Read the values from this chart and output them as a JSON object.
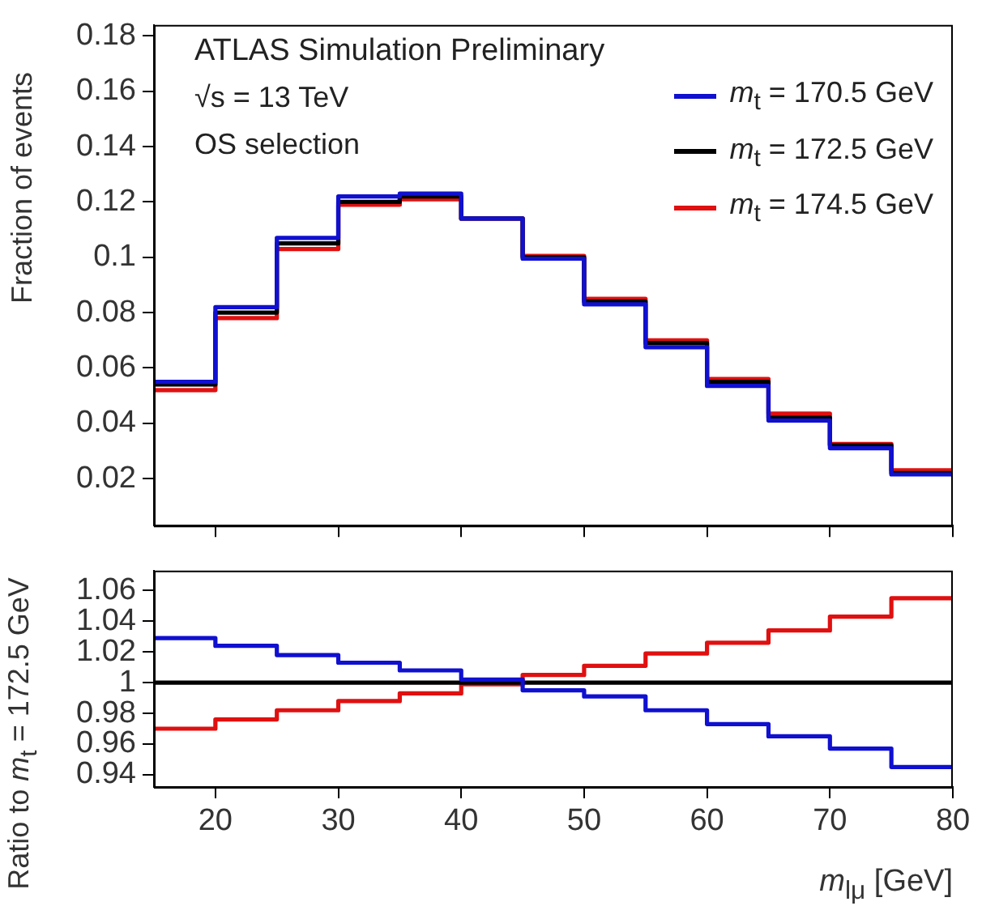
{
  "chart_data": [
    {
      "type": "histogram",
      "bins": [
        15,
        20,
        25,
        30,
        35,
        40,
        45,
        50,
        55,
        60,
        65,
        70,
        75,
        80
      ],
      "series": [
        {
          "name": "m$_{t}$ = 170.5 GeV",
          "color": "#1010d0",
          "values": [
            0.055,
            0.082,
            0.107,
            0.122,
            0.123,
            0.114,
            0.0995,
            0.083,
            0.0675,
            0.0535,
            0.041,
            0.031,
            0.0215
          ]
        },
        {
          "name": "m$_{t}$ = 172.5 GeV",
          "color": "#000000",
          "values": [
            0.054,
            0.08,
            0.105,
            0.12,
            0.122,
            0.114,
            0.1,
            0.084,
            0.069,
            0.055,
            0.042,
            0.032,
            0.022
          ]
        },
        {
          "name": "m$_{t}$ = 174.5 GeV",
          "color": "#e01010",
          "values": [
            0.052,
            0.078,
            0.103,
            0.119,
            0.121,
            0.114,
            0.1005,
            0.085,
            0.07,
            0.056,
            0.0435,
            0.0325,
            0.023
          ]
        }
      ],
      "ylabel": "Fraction of events",
      "xlim": [
        15,
        80
      ],
      "xticks": [
        20,
        30,
        40,
        50,
        60,
        70,
        80
      ],
      "ylim": [
        0.003,
        0.184
      ],
      "yticks": [
        0.02,
        0.04,
        0.06,
        0.08,
        0.1,
        0.12,
        0.14,
        0.16,
        0.18
      ],
      "tick_labels": "y",
      "legend": "top right",
      "grid": false,
      "annotations": [
        "ATLAS Simulation Preliminary",
        "√s = 13 TeV",
        "OS selection"
      ]
    },
    {
      "type": "histogram",
      "bins": [
        15,
        20,
        25,
        30,
        35,
        40,
        45,
        50,
        55,
        60,
        65,
        70,
        75,
        80
      ],
      "series": [
        {
          "color": "#1010d0",
          "values": [
            1.029,
            1.024,
            1.018,
            1.013,
            1.008,
            1.002,
            0.995,
            0.991,
            0.982,
            0.973,
            0.965,
            0.957,
            0.945
          ]
        },
        {
          "color": "#000000",
          "values": [
            1,
            1,
            1,
            1,
            1,
            1,
            1,
            1,
            1,
            1,
            1,
            1,
            1
          ]
        },
        {
          "color": "#e01010",
          "values": [
            0.97,
            0.976,
            0.982,
            0.988,
            0.993,
            0.999,
            1.005,
            1.011,
            1.019,
            1.026,
            1.034,
            1.043,
            1.055
          ]
        }
      ],
      "xlabel": "m$_{lμ}$ [GeV]",
      "ylabel": "Ratio to m$_{t}$ = 172.5 GeV",
      "xlim": [
        15,
        80
      ],
      "xticks": [
        20,
        30,
        40,
        50,
        60,
        70,
        80
      ],
      "ylim": [
        0.932,
        1.073
      ],
      "yticks": [
        0.94,
        0.96,
        0.98,
        1,
        1.02,
        1.04,
        1.06
      ],
      "grid": false
    }
  ]
}
